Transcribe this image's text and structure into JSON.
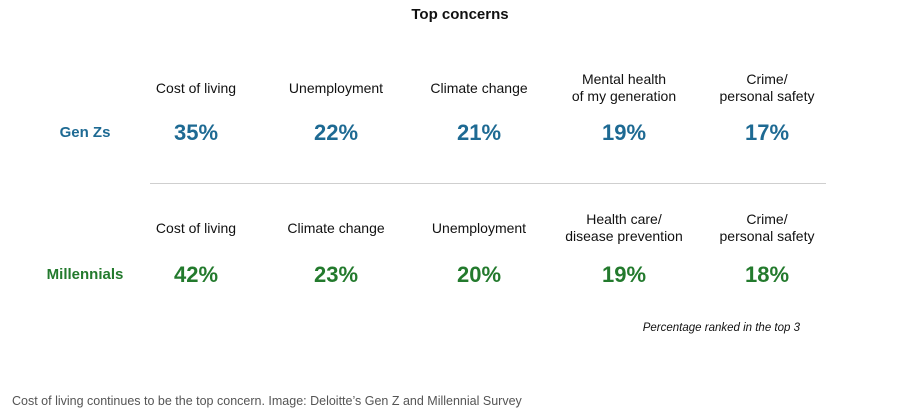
{
  "title": "Top concerns",
  "colors": {
    "gen_z": "#1e6a93",
    "millennials": "#237a2d"
  },
  "chart_data": {
    "type": "table",
    "title": "Top concerns",
    "groups": [
      {
        "name": "Gen Zs",
        "items": [
          {
            "label": "Cost of living",
            "value": "35%"
          },
          {
            "label": "Unemployment",
            "value": "22%"
          },
          {
            "label": "Climate change",
            "value": "21%"
          },
          {
            "label": "Mental health\nof my generation",
            "value": "19%"
          },
          {
            "label": "Crime/\npersonal safety",
            "value": "17%"
          }
        ]
      },
      {
        "name": "Millennials",
        "items": [
          {
            "label": "Cost of living",
            "value": "42%"
          },
          {
            "label": "Climate change",
            "value": "23%"
          },
          {
            "label": "Unemployment",
            "value": "20%"
          },
          {
            "label": "Health care/\ndisease prevention",
            "value": "19%"
          },
          {
            "label": "Crime/\npersonal safety",
            "value": "18%"
          }
        ]
      }
    ],
    "note": "Percentage ranked in the top 3"
  },
  "caption": "Cost of living continues to be the top concern. Image: Deloitte’s Gen Z and Millennial Survey"
}
